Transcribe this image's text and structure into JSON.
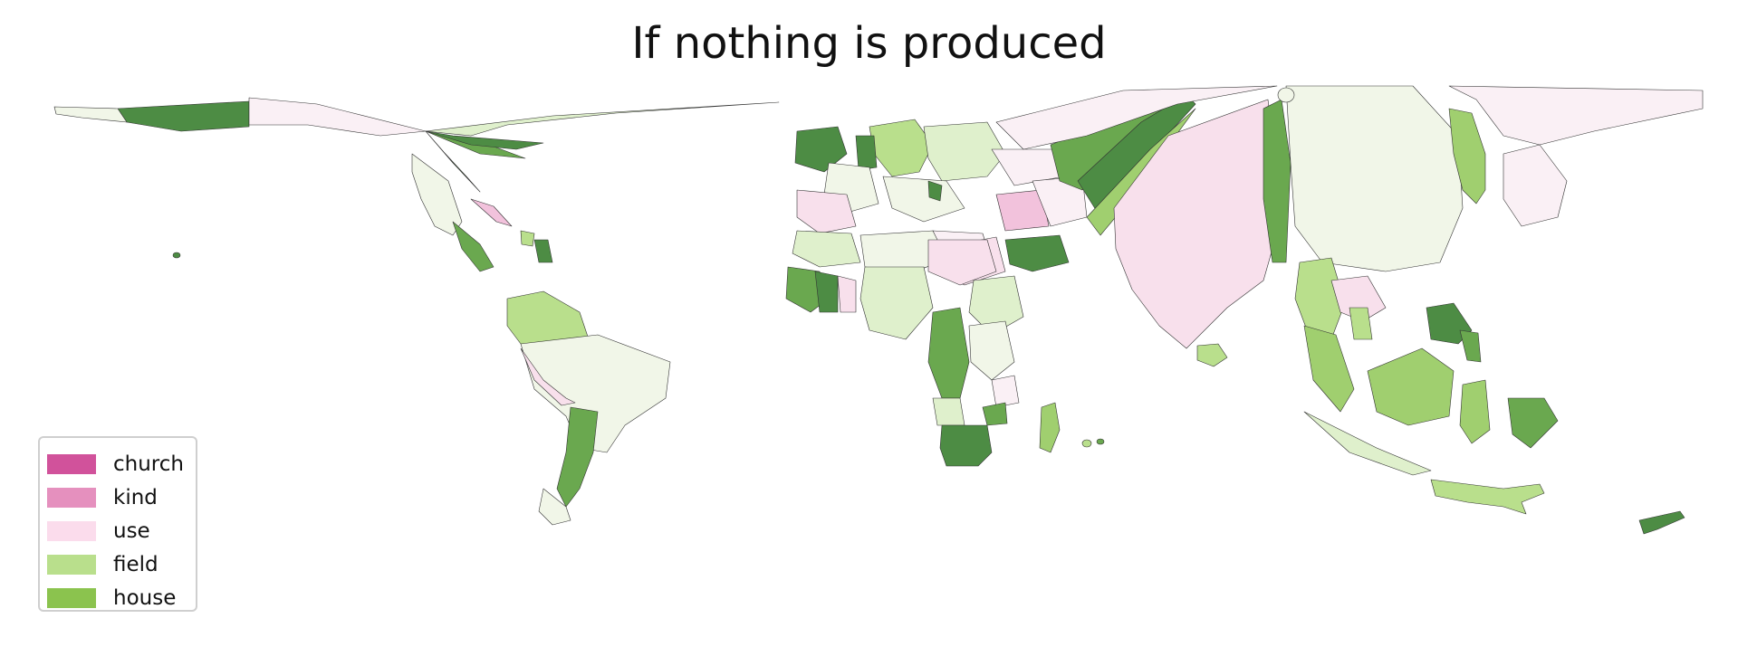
{
  "title": "If nothing is produced",
  "legend": {
    "items": [
      {
        "label": "church",
        "color": "#d1529b"
      },
      {
        "label": "kind",
        "color": "#e590be"
      },
      {
        "label": "use",
        "color": "#fbdcec"
      },
      {
        "label": "field",
        "color": "#b9df8c"
      },
      {
        "label": "house",
        "color": "#8bc34e"
      }
    ]
  },
  "map": {
    "projection": "cartogram",
    "palette": {
      "very_light_pink": "#faf0f5",
      "light_pink": "#f8e0ec",
      "pink": "#f2c2dc",
      "very_light_green": "#f1f6e8",
      "light_green": "#dff0cc",
      "green": "#b9df8c",
      "mid_green": "#a0cf6f",
      "dark_green": "#6aa84f",
      "darkest_green": "#4d8c44"
    }
  }
}
